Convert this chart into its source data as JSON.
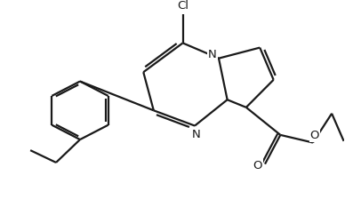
{
  "bg_color": "#ffffff",
  "line_color": "#1a1a1a",
  "line_width": 1.6,
  "font_size": 9.5,
  "figsize": [
    3.88,
    2.24
  ],
  "dpi": 100,
  "xlim": [
    0,
    10
  ],
  "ylim": [
    0,
    6
  ]
}
